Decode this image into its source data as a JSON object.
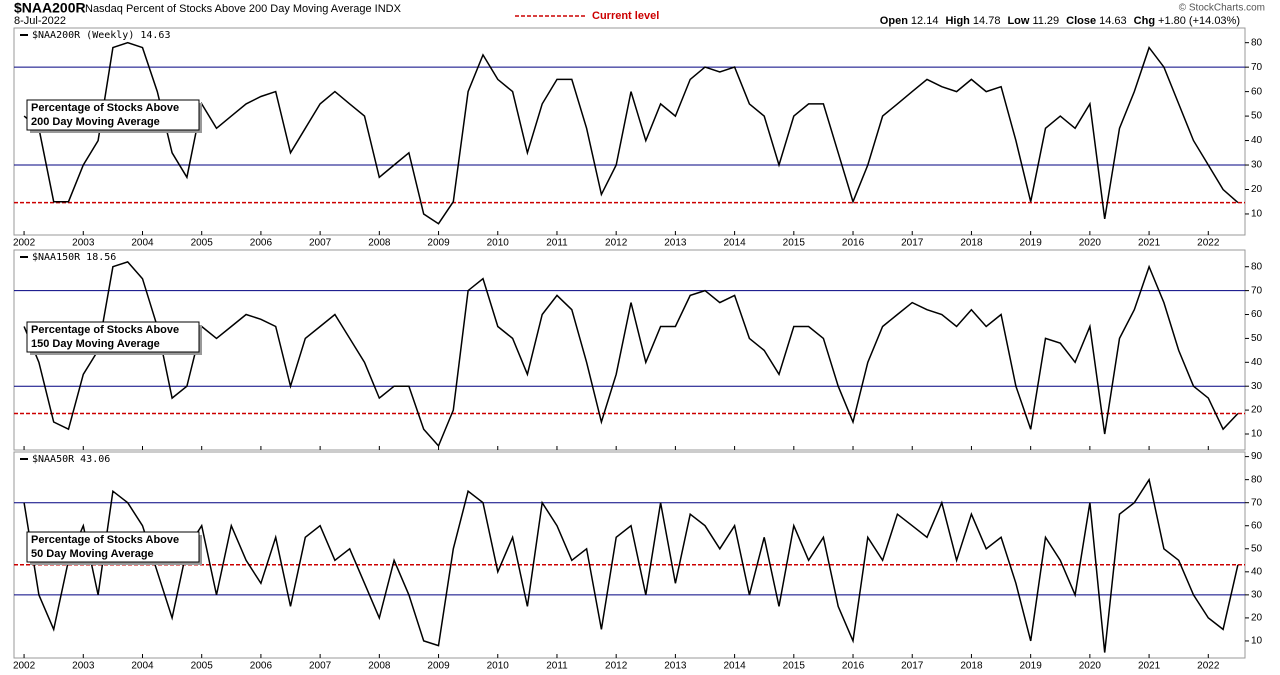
{
  "header": {
    "symbol": "$NAA200R",
    "description": "Nasdaq Percent of Stocks Above 200 Day Moving Average INDX",
    "date": "8-Jul-2022",
    "legend": "Current level",
    "quote": [
      "Open",
      "12.14",
      "High",
      "14.78",
      "Low",
      "11.29",
      "Close",
      "14.63",
      "Chg",
      "+1.80 (+14.03%)"
    ],
    "credit": "© StockCharts.com"
  },
  "chart_data": [
    {
      "type": "line",
      "title": "$NAA200R (Weekly) 14.63",
      "annotation": [
        "Percentage of Stocks Above",
        "200 Day Moving Average"
      ],
      "color": "#000000",
      "ref_lines": [
        70,
        30
      ],
      "ref_color": "#000080",
      "current_level": 14.63,
      "current_color": "#cc0000",
      "x": [
        2002,
        2002.25,
        2002.5,
        2002.75,
        2003,
        2003.25,
        2003.5,
        2003.75,
        2004,
        2004.25,
        2004.5,
        2004.75,
        2005,
        2005.25,
        2005.5,
        2005.75,
        2006,
        2006.25,
        2006.5,
        2006.75,
        2007,
        2007.25,
        2007.5,
        2007.75,
        2008,
        2008.25,
        2008.5,
        2008.75,
        2009,
        2009.25,
        2009.5,
        2009.75,
        2010,
        2010.25,
        2010.5,
        2010.75,
        2011,
        2011.25,
        2011.5,
        2011.75,
        2012,
        2012.25,
        2012.5,
        2012.75,
        2013,
        2013.25,
        2013.5,
        2013.75,
        2014,
        2014.25,
        2014.5,
        2014.75,
        2015,
        2015.25,
        2015.5,
        2015.75,
        2016,
        2016.25,
        2016.5,
        2016.75,
        2017,
        2017.25,
        2017.5,
        2017.75,
        2018,
        2018.25,
        2018.5,
        2018.75,
        2019,
        2019.25,
        2019.5,
        2019.75,
        2020,
        2020.25,
        2020.5,
        2020.75,
        2021,
        2021.25,
        2021.5,
        2021.75,
        2022,
        2022.25,
        2022.5
      ],
      "values": [
        50,
        45,
        15,
        15,
        30,
        40,
        78,
        80,
        78,
        60,
        35,
        25,
        55,
        45,
        50,
        55,
        58,
        60,
        35,
        45,
        55,
        60,
        55,
        50,
        25,
        30,
        35,
        10,
        6,
        15,
        60,
        75,
        65,
        60,
        35,
        55,
        65,
        65,
        45,
        18,
        30,
        60,
        40,
        55,
        50,
        65,
        70,
        68,
        70,
        55,
        50,
        30,
        50,
        55,
        55,
        35,
        15,
        30,
        50,
        55,
        60,
        65,
        62,
        60,
        65,
        60,
        62,
        40,
        15,
        45,
        50,
        45,
        55,
        8,
        45,
        60,
        78,
        70,
        55,
        40,
        30,
        20,
        14.63
      ],
      "xlim": [
        2001.83,
        2022.62
      ],
      "xticks": [
        2002,
        2003,
        2004,
        2005,
        2006,
        2007,
        2008,
        2009,
        2010,
        2011,
        2012,
        2013,
        2014,
        2015,
        2016,
        2017,
        2018,
        2019,
        2020,
        2021,
        2022
      ],
      "ylim": [
        1.4,
        86
      ],
      "yticks": [
        10,
        20,
        30,
        40,
        50,
        60,
        70,
        80
      ]
    },
    {
      "type": "line",
      "title": "$NAA150R 18.56",
      "annotation": [
        "Percentage of Stocks Above",
        "150 Day Moving Average"
      ],
      "color": "#000000",
      "ref_lines": [
        70,
        30
      ],
      "ref_color": "#000080",
      "current_level": 18.56,
      "current_color": "#cc0000",
      "x": [
        2002,
        2002.25,
        2002.5,
        2002.75,
        2003,
        2003.25,
        2003.5,
        2003.75,
        2004,
        2004.25,
        2004.5,
        2004.75,
        2005,
        2005.25,
        2005.5,
        2005.75,
        2006,
        2006.25,
        2006.5,
        2006.75,
        2007,
        2007.25,
        2007.5,
        2007.75,
        2008,
        2008.25,
        2008.5,
        2008.75,
        2009,
        2009.25,
        2009.5,
        2009.75,
        2010,
        2010.25,
        2010.5,
        2010.75,
        2011,
        2011.25,
        2011.5,
        2011.75,
        2012,
        2012.25,
        2012.5,
        2012.75,
        2013,
        2013.25,
        2013.5,
        2013.75,
        2014,
        2014.25,
        2014.5,
        2014.75,
        2015,
        2015.25,
        2015.5,
        2015.75,
        2016,
        2016.25,
        2016.5,
        2016.75,
        2017,
        2017.25,
        2017.5,
        2017.75,
        2018,
        2018.25,
        2018.5,
        2018.75,
        2019,
        2019.25,
        2019.5,
        2019.75,
        2020,
        2020.25,
        2020.5,
        2020.75,
        2021,
        2021.25,
        2021.5,
        2021.75,
        2022,
        2022.25,
        2022.5
      ],
      "values": [
        55,
        40,
        15,
        12,
        35,
        45,
        80,
        82,
        75,
        55,
        25,
        30,
        55,
        50,
        55,
        60,
        58,
        55,
        30,
        50,
        55,
        60,
        50,
        40,
        25,
        30,
        30,
        12,
        5,
        20,
        70,
        75,
        55,
        50,
        35,
        60,
        68,
        62,
        40,
        15,
        35,
        65,
        40,
        55,
        55,
        68,
        70,
        65,
        68,
        50,
        45,
        35,
        55,
        55,
        50,
        30,
        15,
        40,
        55,
        60,
        65,
        62,
        60,
        55,
        62,
        55,
        60,
        30,
        12,
        50,
        48,
        40,
        55,
        10,
        50,
        62,
        80,
        65,
        45,
        30,
        25,
        12,
        18.56
      ],
      "xlim": [
        2001.83,
        2022.62
      ],
      "xticks": [
        2002,
        2003,
        2004,
        2005,
        2006,
        2007,
        2008,
        2009,
        2010,
        2011,
        2012,
        2013,
        2014,
        2015,
        2016,
        2017,
        2018,
        2019,
        2020,
        2021,
        2022
      ],
      "ylim": [
        3.3,
        87
      ],
      "yticks": [
        10,
        20,
        30,
        40,
        50,
        60,
        70,
        80
      ]
    },
    {
      "type": "line",
      "title": "$NAA50R 43.06",
      "annotation": [
        "Percentage of Stocks Above",
        "50 Day Moving Average"
      ],
      "color": "#000000",
      "ref_lines": [
        70,
        30
      ],
      "ref_color": "#000080",
      "current_level": 43.06,
      "current_color": "#cc0000",
      "x": [
        2002,
        2002.25,
        2002.5,
        2002.75,
        2003,
        2003.25,
        2003.5,
        2003.75,
        2004,
        2004.25,
        2004.5,
        2004.75,
        2005,
        2005.25,
        2005.5,
        2005.75,
        2006,
        2006.25,
        2006.5,
        2006.75,
        2007,
        2007.25,
        2007.5,
        2007.75,
        2008,
        2008.25,
        2008.5,
        2008.75,
        2009,
        2009.25,
        2009.5,
        2009.75,
        2010,
        2010.25,
        2010.5,
        2010.75,
        2011,
        2011.25,
        2011.5,
        2011.75,
        2012,
        2012.25,
        2012.5,
        2012.75,
        2013,
        2013.25,
        2013.5,
        2013.75,
        2014,
        2014.25,
        2014.5,
        2014.75,
        2015,
        2015.25,
        2015.5,
        2015.75,
        2016,
        2016.25,
        2016.5,
        2016.75,
        2017,
        2017.25,
        2017.5,
        2017.75,
        2018,
        2018.25,
        2018.5,
        2018.75,
        2019,
        2019.25,
        2019.5,
        2019.75,
        2020,
        2020.25,
        2020.5,
        2020.75,
        2021,
        2021.25,
        2021.5,
        2021.75,
        2022,
        2022.25,
        2022.5
      ],
      "values": [
        70,
        30,
        15,
        45,
        60,
        30,
        75,
        70,
        60,
        40,
        20,
        50,
        60,
        30,
        60,
        45,
        35,
        55,
        25,
        55,
        60,
        45,
        50,
        35,
        20,
        45,
        30,
        10,
        8,
        50,
        75,
        70,
        40,
        55,
        25,
        70,
        60,
        45,
        50,
        15,
        55,
        60,
        30,
        70,
        35,
        65,
        60,
        50,
        60,
        30,
        55,
        25,
        60,
        45,
        55,
        25,
        10,
        55,
        45,
        65,
        60,
        55,
        70,
        45,
        65,
        50,
        55,
        35,
        10,
        55,
        45,
        30,
        70,
        5,
        65,
        70,
        80,
        50,
        45,
        30,
        20,
        15,
        43.06
      ],
      "xlim": [
        2001.83,
        2022.62
      ],
      "xticks": [
        2002,
        2003,
        2004,
        2005,
        2006,
        2007,
        2008,
        2009,
        2010,
        2011,
        2012,
        2013,
        2014,
        2015,
        2016,
        2017,
        2018,
        2019,
        2020,
        2021,
        2022
      ],
      "ylim": [
        2.6,
        92
      ],
      "yticks": [
        10,
        20,
        30,
        40,
        50,
        60,
        70,
        80,
        90
      ]
    }
  ]
}
